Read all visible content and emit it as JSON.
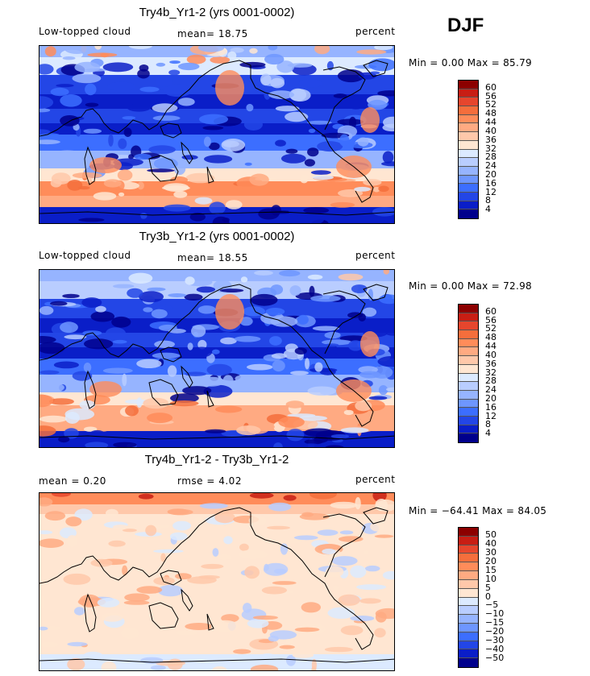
{
  "season": "DJF",
  "palettes": {
    "abs": [
      "#00008c",
      "#0a1ec8",
      "#2346e6",
      "#3c6eff",
      "#6e96ff",
      "#96b4ff",
      "#b9cdff",
      "#dceaff",
      "#ffe6d2",
      "#ffc8aa",
      "#ffaa82",
      "#ff8c5a",
      "#f56e3c",
      "#e6462d",
      "#c81e14",
      "#8c0000"
    ],
    "diff": [
      "#00008c",
      "#0a1ec8",
      "#2346e6",
      "#3c6eff",
      "#6e96ff",
      "#96b4ff",
      "#b9cdff",
      "#dceaff",
      "#ffe6d2",
      "#ffc8aa",
      "#ffaa82",
      "#ff8c5a",
      "#f56e3c",
      "#e6462d",
      "#c81e14",
      "#8c0000"
    ]
  },
  "panels": [
    {
      "title": "Try4b_Yr1-2 (yrs 0001-0002)",
      "left_label": "Low-topped cloud",
      "mean_label": "mean=  18.75",
      "unit_label": "percent",
      "minmax": "Min =   0.00 Max =  85.79",
      "field": "model_a"
    },
    {
      "title": "Try3b_Yr1-2 (yrs 0001-0002)",
      "left_label": "Low-topped cloud",
      "mean_label": "mean=  18.55",
      "unit_label": "percent",
      "minmax": "Min =   0.00 Max =  72.98",
      "field": "model_b"
    },
    {
      "title": "Try4b_Yr1-2 - Try3b_Yr1-2",
      "left_label": "mean =   0.20",
      "mean_label": "rmse =   4.02",
      "unit_label": "percent",
      "minmax": "Min = −64.41 Max =  84.05",
      "field": "difference"
    }
  ],
  "chart_data": [
    {
      "type": "heatmap",
      "title": "Try4b_Yr1-2 (yrs 0001-0002)",
      "variable": "Low-topped cloud",
      "units": "percent",
      "season": "DJF",
      "mean": 18.75,
      "min": 0.0,
      "max": 85.79,
      "contour_levels": [
        4,
        8,
        12,
        16,
        20,
        24,
        28,
        32,
        36,
        40,
        44,
        48,
        52,
        56,
        60
      ],
      "projection": "cylindrical equidistant, Pacific-centered",
      "lon_range": [
        0,
        360
      ],
      "lat_range": [
        -90,
        90
      ],
      "approx_zonal_pattern": [
        {
          "lat": 75,
          "value": 32
        },
        {
          "lat": 55,
          "value": 30
        },
        {
          "lat": 40,
          "value": 14
        },
        {
          "lat": 25,
          "value": 16
        },
        {
          "lat": 10,
          "value": 10
        },
        {
          "lat": -5,
          "value": 16
        },
        {
          "lat": -18,
          "value": 20
        },
        {
          "lat": -35,
          "value": 24
        },
        {
          "lat": -50,
          "value": 40
        },
        {
          "lat": -62,
          "value": 46
        },
        {
          "lat": -75,
          "value": 6
        }
      ]
    },
    {
      "type": "heatmap",
      "title": "Try3b_Yr1-2 (yrs 0001-0002)",
      "variable": "Low-topped cloud",
      "units": "percent",
      "season": "DJF",
      "mean": 18.55,
      "min": 0.0,
      "max": 72.98,
      "contour_levels": [
        4,
        8,
        12,
        16,
        20,
        24,
        28,
        32,
        36,
        40,
        44,
        48,
        52,
        56,
        60
      ],
      "projection": "cylindrical equidistant, Pacific-centered",
      "lon_range": [
        0,
        360
      ],
      "lat_range": [
        -90,
        90
      ],
      "approx_zonal_pattern": [
        {
          "lat": 75,
          "value": 30
        },
        {
          "lat": 55,
          "value": 28
        },
        {
          "lat": 40,
          "value": 13
        },
        {
          "lat": 25,
          "value": 15
        },
        {
          "lat": 10,
          "value": 10
        },
        {
          "lat": -5,
          "value": 15
        },
        {
          "lat": -18,
          "value": 20
        },
        {
          "lat": -35,
          "value": 24
        },
        {
          "lat": -50,
          "value": 40
        },
        {
          "lat": -62,
          "value": 46
        },
        {
          "lat": -75,
          "value": 6
        }
      ]
    },
    {
      "type": "heatmap",
      "title": "Try4b_Yr1-2 - Try3b_Yr1-2",
      "units": "percent",
      "season": "DJF",
      "mean": 0.2,
      "rmse": 4.02,
      "min": -64.41,
      "max": 84.05,
      "contour_levels": [
        -50,
        -40,
        -30,
        -20,
        -15,
        -10,
        -5,
        0,
        5,
        10,
        15,
        20,
        30,
        40,
        50
      ],
      "projection": "cylindrical equidistant, Pacific-centered",
      "lon_range": [
        0,
        360
      ],
      "lat_range": [
        -90,
        90
      ],
      "approx_zonal_pattern": [
        {
          "lat": 80,
          "value": 20
        },
        {
          "lat": 60,
          "value": 4
        },
        {
          "lat": 30,
          "value": 1
        },
        {
          "lat": 0,
          "value": 1
        },
        {
          "lat": -30,
          "value": 1
        },
        {
          "lat": -60,
          "value": -1
        },
        {
          "lat": -80,
          "value": 0
        }
      ]
    }
  ],
  "colorbars": [
    {
      "ticks": [
        "60",
        "56",
        "52",
        "48",
        "44",
        "40",
        "36",
        "32",
        "28",
        "24",
        "20",
        "16",
        "12",
        "8",
        "4"
      ]
    },
    {
      "ticks": [
        "60",
        "56",
        "52",
        "48",
        "44",
        "40",
        "36",
        "32",
        "28",
        "24",
        "20",
        "16",
        "12",
        "8",
        "4"
      ]
    },
    {
      "ticks": [
        "50",
        "40",
        "30",
        "20",
        "15",
        "10",
        "5",
        "0",
        "−5",
        "−10",
        "−15",
        "−20",
        "−30",
        "−40",
        "−50"
      ]
    }
  ]
}
